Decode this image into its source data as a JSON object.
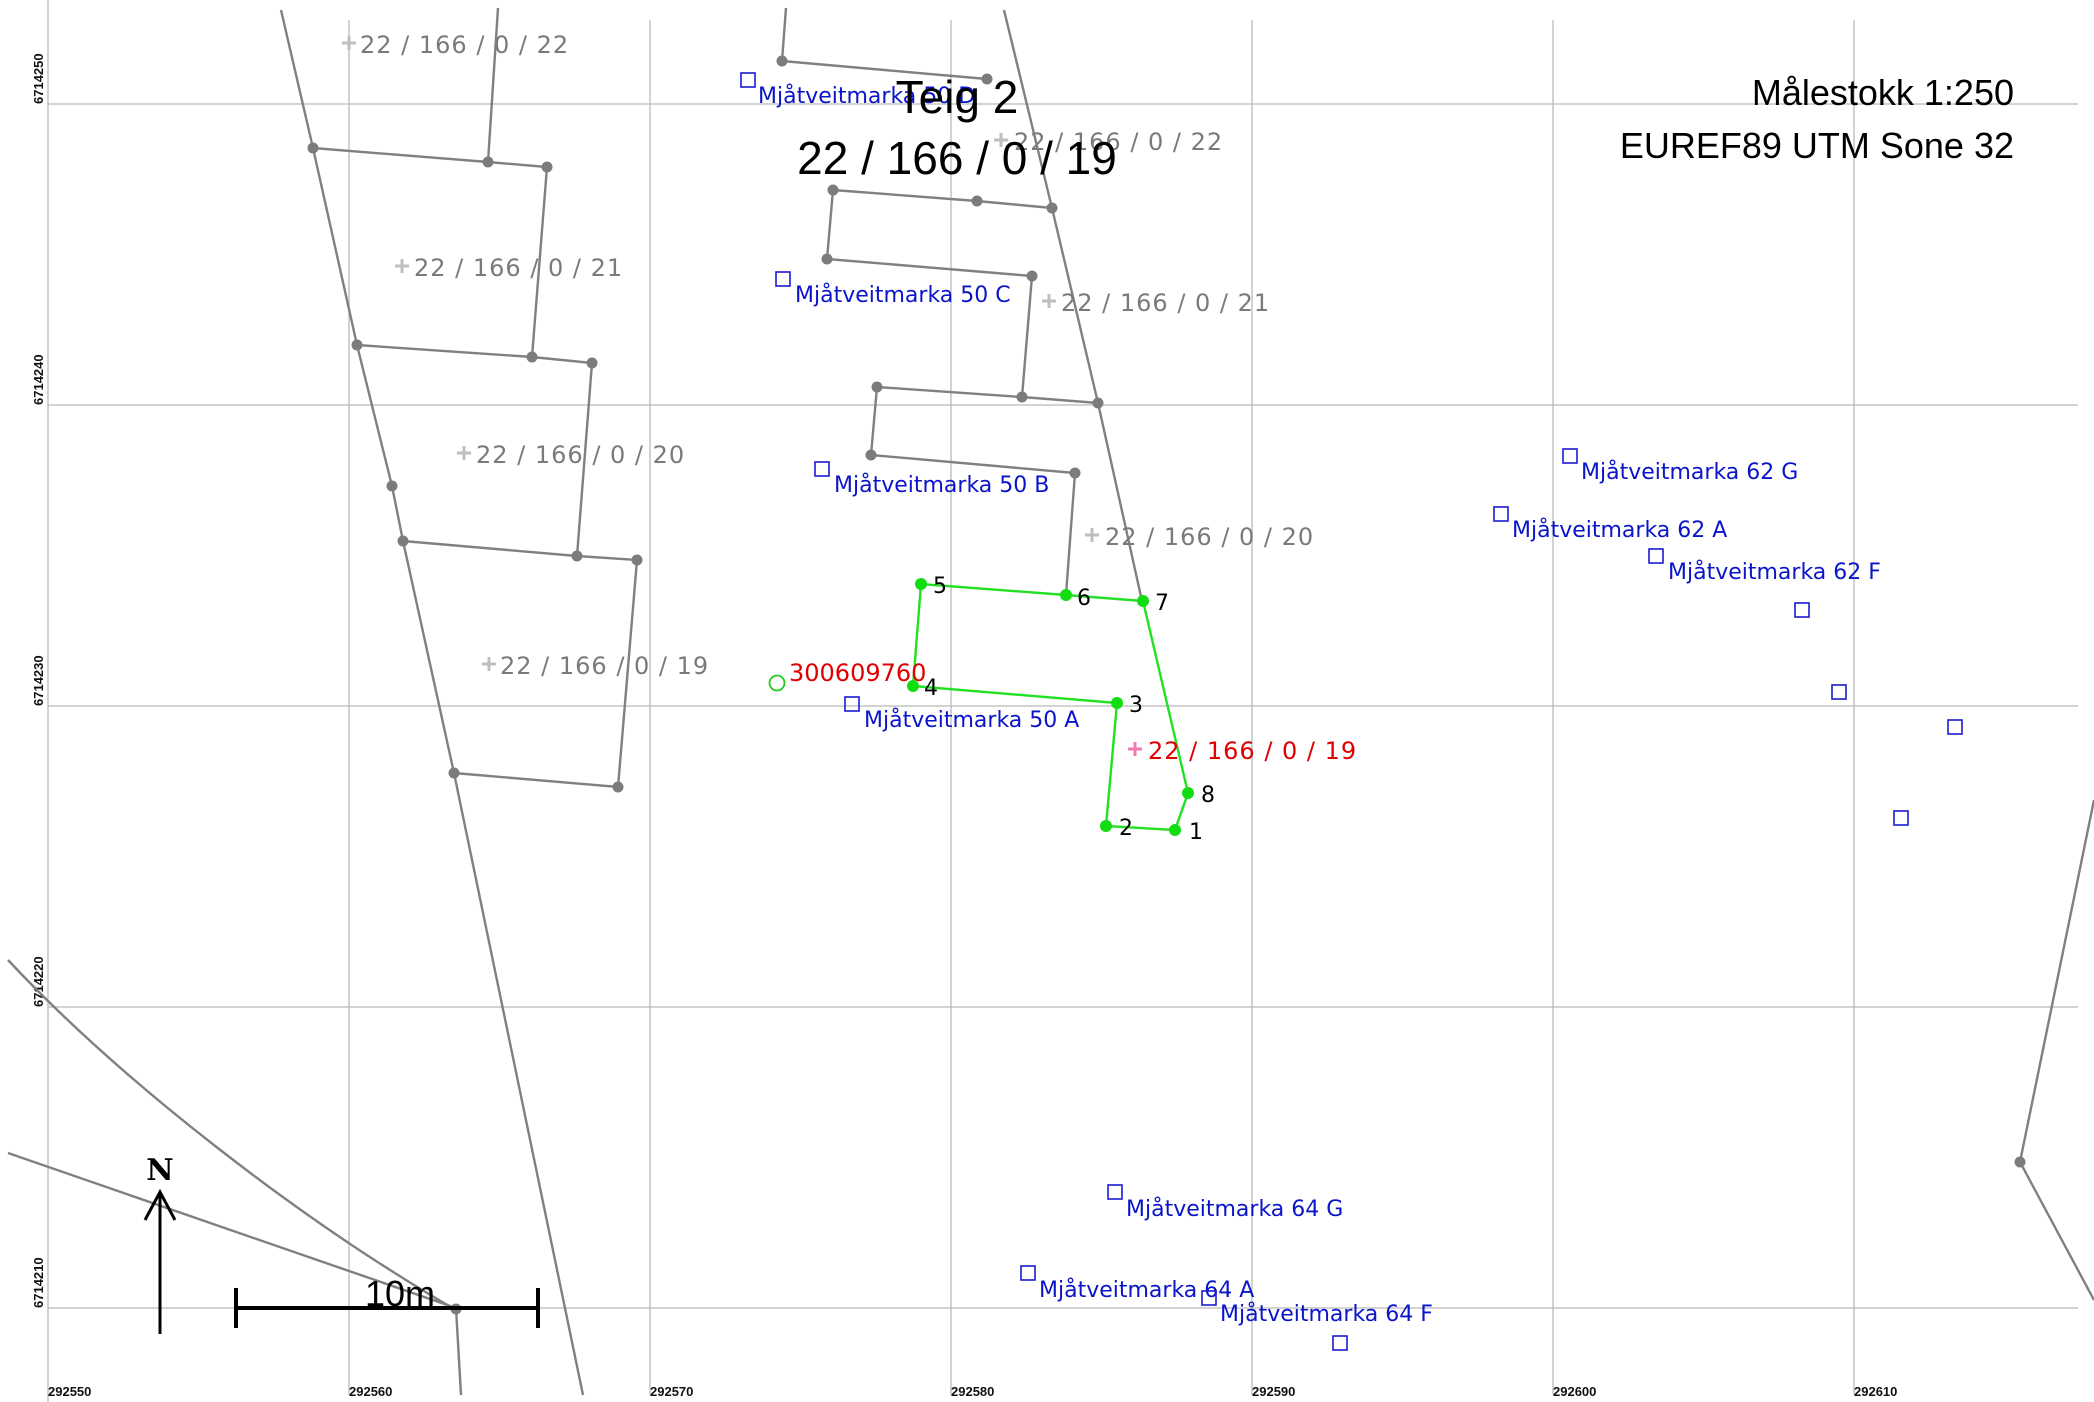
{
  "map": {
    "title_line1": "Teig 2",
    "title_line2": "22 / 166 / 0 / 19",
    "scale_text": "Målestokk 1:250",
    "crs_text": "EUREF89 UTM Sone 32",
    "north_label": "N",
    "scalebar_label": "10m",
    "colors": {
      "parcel_lines": "#808080",
      "teig_boundary": "#22e022",
      "address": "#0a14c8",
      "highlight": "#e00000"
    }
  },
  "axes": {
    "x_ticks": [
      "292550",
      "292560",
      "292570",
      "292580",
      "292590",
      "292600",
      "292610"
    ],
    "y_ticks": [
      "6714250",
      "6714240",
      "6714230",
      "6714220",
      "6714210"
    ]
  },
  "teig_points": [
    "1",
    "2",
    "3",
    "4",
    "5",
    "6",
    "7",
    "8"
  ],
  "parcel_labels": [
    "22 / 166 / 0 / 22",
    "22 / 166 / 0 / 21",
    "22 / 166 / 0 / 20",
    "22 / 166 / 0 / 19",
    "22 / 166 / 0 / 22",
    "22 / 166 / 0 / 21",
    "22 / 166 / 0 / 20"
  ],
  "selected_parcel_label": "22 / 166 / 0 / 19",
  "point_id_label": "300609760",
  "addresses": [
    "Mjåtveitmarka 50 D",
    "Mjåtveitmarka 50 C",
    "Mjåtveitmarka 50 B",
    "Mjåtveitmarka 50 A",
    "Mjåtveitmarka 62 G",
    "Mjåtveitmarka 62 A",
    "Mjåtveitmarka 62 F",
    "Mjåtveitmarka 64 G",
    "Mjåtveitmarka 64 A",
    "Mjåtveitmarka 64 F"
  ]
}
